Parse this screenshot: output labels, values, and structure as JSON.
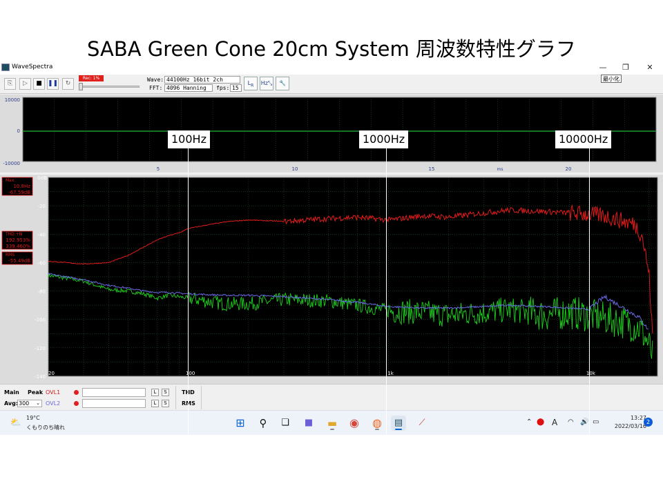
{
  "slide": {
    "title": "SABA Green Cone 20cm System 周波数特性グラフ"
  },
  "window": {
    "app_title": "WaveSpectra",
    "minimize_glyph": "—",
    "maximize_glyph": "❐",
    "close_glyph": "✕",
    "tooltip": "最小化"
  },
  "toolbar": {
    "rec_badge": "Rec: 1%",
    "wave_label": "Wave:",
    "wave_value": "44100Hz 16bit 2ch",
    "fft_label": "FFT:",
    "fft_value": "4096 Hanning",
    "fps_label": "fps:",
    "fps_value": "15"
  },
  "scope": {
    "y_ticks": [
      "10000",
      "0",
      "-10000"
    ],
    "x_ticks": [
      "5",
      "10",
      "15",
      "20"
    ],
    "x_unit": "ms"
  },
  "spectrum": {
    "y_top_label": "0dB",
    "y_ticks": [
      "-20",
      "-40",
      "-60",
      "-80",
      "-100",
      "-120",
      "-140"
    ],
    "x_ticks": [
      "20",
      "100",
      "1k",
      "10k"
    ],
    "max_title": "Max",
    "max_freq": "10.8Hz",
    "max_level": "-67.59dB",
    "thd_title": "THD.+N",
    "thd_value1": "192.953%",
    "thd_value2": "339.460%",
    "rms_title": "RMS",
    "rms_value": "-55.49dB"
  },
  "controls": {
    "main_label": "Main",
    "peak_label": "Peak",
    "avg_label": "Avg:",
    "avg_value": "300",
    "ovl1_label": "OVL1",
    "ovl2_label": "OVL2",
    "l_label": "L",
    "s_label": "S",
    "thd_label": "THD",
    "rms_label": "RMS"
  },
  "taskbar": {
    "temperature": "19°C",
    "weather": "くもりのち晴れ",
    "ime": "A",
    "time": "13:27",
    "date": "2022/03/16",
    "notifications": "2"
  },
  "annotations": [
    {
      "label": "100Hz"
    },
    {
      "label": "1000Hz"
    },
    {
      "label": "10000Hz"
    }
  ],
  "colors": {
    "plot_bg": "#000000",
    "grid": "#2e6a3a",
    "label": "#ffffff",
    "max_trace": "#e11b1b",
    "green_trace": "#1cd21c",
    "blue_trace": "#6a6ae6",
    "zero_line": "#1f9a30"
  },
  "chart_data": {
    "type": "line",
    "xlabel": "",
    "ylabel": "",
    "xscale": "log",
    "xlim": [
      20,
      22050
    ],
    "ylim": [
      -140,
      0
    ],
    "x_ticks": [
      "20",
      "100",
      "1k",
      "10k"
    ],
    "y_ticks": [
      "0dB",
      "-20",
      "-40",
      "-60",
      "-80",
      "-100",
      "-120",
      "-140"
    ],
    "series": [
      {
        "id": "peak-hold",
        "x": [
          20,
          30,
          40,
          50,
          60,
          70,
          80,
          90,
          100,
          130,
          160,
          200,
          300,
          500,
          700,
          1000,
          1500,
          2000,
          3000,
          4000,
          6000,
          8000,
          10000,
          12000,
          15000,
          17000,
          18500,
          20000,
          21000
        ],
        "y": [
          -59,
          -61,
          -60,
          -55,
          -49,
          -44,
          -41,
          -39,
          -36,
          -33,
          -31,
          -30,
          -31,
          -29,
          -28,
          -30,
          -27,
          -28,
          -25,
          -23,
          -24,
          -25,
          -26,
          -27,
          -31,
          -33,
          -41,
          -68,
          -120
        ]
      },
      {
        "id": "green-current",
        "x": [
          20,
          30,
          40,
          50,
          60,
          70,
          80,
          100,
          150,
          200,
          300,
          500,
          700,
          1000,
          1500,
          2000,
          3000,
          4000,
          6000,
          8000,
          10000,
          15000,
          18000,
          20000,
          21000
        ],
        "y": [
          -69,
          -73,
          -79,
          -80,
          -82,
          -85,
          -83,
          -85,
          -89,
          -89,
          -86,
          -87,
          -90,
          -94,
          -95,
          -97,
          -95,
          -93,
          -97,
          -95,
          -97,
          -102,
          -106,
          -118,
          -128
        ]
      },
      {
        "id": "blue-average",
        "x": [
          20,
          30,
          40,
          50,
          60,
          70,
          80,
          100,
          150,
          200,
          300,
          500,
          700,
          1000,
          1500,
          2000,
          3000,
          4000,
          6000,
          8000,
          10000,
          12000,
          15000,
          18000,
          20000
        ],
        "y": [
          -68,
          -72,
          -76,
          -78,
          -80,
          -81,
          -81,
          -82,
          -83,
          -83,
          -84,
          -86,
          -88,
          -91,
          -92,
          -92,
          -91,
          -90,
          -91,
          -92,
          -93,
          -84,
          -92,
          -99,
          -108
        ]
      }
    ]
  }
}
